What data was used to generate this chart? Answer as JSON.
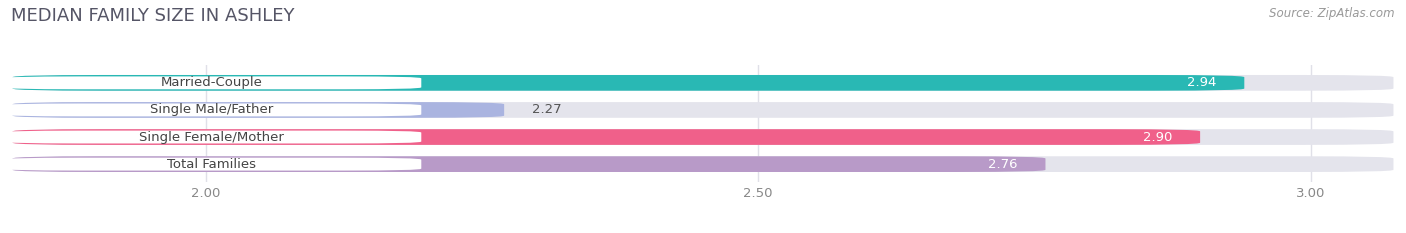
{
  "title": "MEDIAN FAMILY SIZE IN ASHLEY",
  "source": "Source: ZipAtlas.com",
  "categories": [
    "Married-Couple",
    "Single Male/Father",
    "Single Female/Mother",
    "Total Families"
  ],
  "values": [
    2.94,
    2.27,
    2.9,
    2.76
  ],
  "bar_colors": [
    "#29b8b4",
    "#aab4e0",
    "#f0608a",
    "#b89ac8"
  ],
  "bar_bg_color": "#e4e4ec",
  "background_color": "#ffffff",
  "xlim_min": 1.82,
  "xlim_max": 3.08,
  "xticks": [
    2.0,
    2.5,
    3.0
  ],
  "bar_height": 0.58,
  "label_fontsize": 9.5,
  "value_fontsize": 9.5,
  "title_fontsize": 13,
  "source_fontsize": 8.5,
  "grid_color": "#e0e0e8",
  "tick_color": "#888888"
}
